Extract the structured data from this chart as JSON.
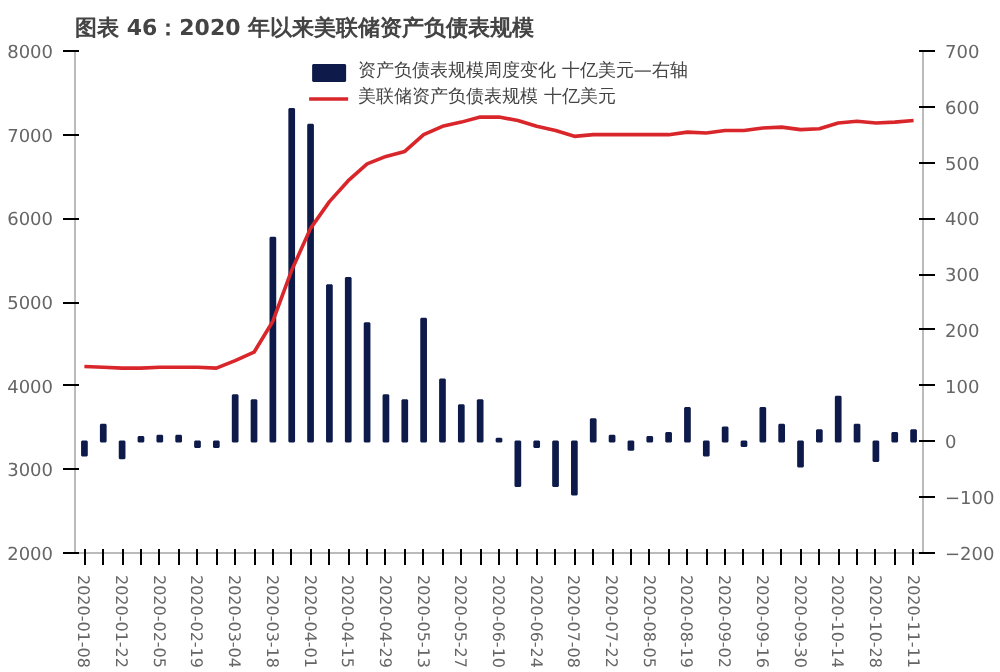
{
  "chart_data": {
    "type": "bar",
    "title": "图表 46：2020 年以来美联储资产负债表规模",
    "categories": [
      "2020-01-08",
      null,
      "2020-01-22",
      null,
      "2020-02-05",
      null,
      "2020-02-19",
      null,
      "2020-03-04",
      null,
      "2020-03-18",
      null,
      "2020-04-01",
      null,
      "2020-04-15",
      null,
      "2020-04-29",
      null,
      "2020-05-13",
      null,
      "2020-05-27",
      null,
      "2020-06-10",
      null,
      "2020-06-24",
      null,
      "2020-07-08",
      null,
      "2020-07-22",
      null,
      "2020-08-05",
      null,
      "2020-08-19",
      null,
      "2020-09-02",
      null,
      "2020-09-16",
      null,
      "2020-09-30",
      null,
      "2020-10-14",
      null,
      "2020-10-28",
      null,
      "2020-11-11"
    ],
    "series": [
      {
        "name": "资产负债表规模周度变化 十亿美元—右轴",
        "axis": "y2",
        "color": "#0d1a4a",
        "values": [
          -25,
          30,
          -30,
          8,
          10,
          10,
          -10,
          -10,
          83,
          74,
          365,
          596,
          568,
          280,
          293,
          212,
          83,
          74,
          220,
          111,
          65,
          74,
          5,
          -80,
          -10,
          -80,
          -95,
          40,
          10,
          -15,
          8,
          15,
          60,
          -25,
          25,
          -8,
          60,
          30,
          -45,
          20,
          80,
          30,
          -35,
          15,
          20
        ]
      },
      {
        "name": "美联储资产负债表规模 十亿美元",
        "type": "line",
        "color": "#d9262b",
        "values": [
          4230,
          4220,
          4210,
          4210,
          4220,
          4220,
          4220,
          4210,
          4300,
          4400,
          4770,
          5380,
          5880,
          6200,
          6450,
          6650,
          6740,
          6800,
          7000,
          7100,
          7150,
          7210,
          7210,
          7170,
          7100,
          7050,
          6980,
          7000,
          7000,
          7000,
          7000,
          7000,
          7030,
          7020,
          7050,
          7050,
          7080,
          7090,
          7060,
          7070,
          7140,
          7160,
          7140,
          7150,
          7170
        ]
      }
    ],
    "ylim": [
      2000,
      8000
    ],
    "yticks": [
      2000,
      3000,
      4000,
      5000,
      6000,
      7000,
      8000
    ],
    "y2lim": [
      -200,
      700
    ],
    "y2ticks": [
      -200,
      -100,
      0,
      100,
      200,
      300,
      400,
      500,
      600,
      700
    ],
    "legend": "top",
    "grid": false
  }
}
